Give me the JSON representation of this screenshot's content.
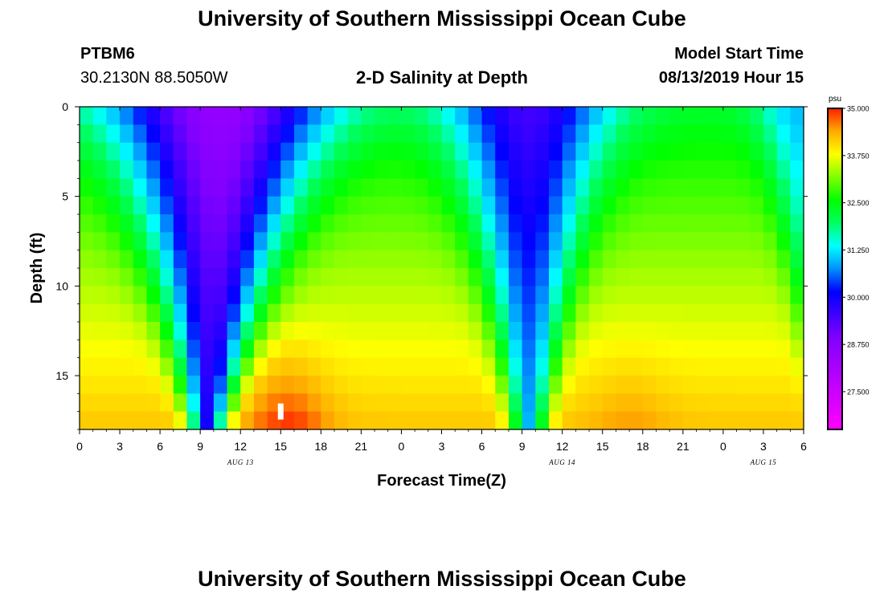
{
  "header": {
    "title": "University of Southern Mississippi Ocean Cube",
    "station": "PTBM6",
    "coordinates": "30.2130N 88.5050W",
    "plot_title": "2-D Salinity at Depth",
    "model_label": "Model Start Time",
    "model_time": "08/13/2019 Hour 15"
  },
  "footer": {
    "title": "University of Southern Mississippi Ocean Cube"
  },
  "chart_data": {
    "type": "heatmap",
    "title": "2-D Salinity at Depth",
    "xlabel": "Forecast Time(Z)",
    "ylabel": "Depth (ft)",
    "x_range_hours": [
      0,
      54
    ],
    "y_range_ft": [
      0,
      18
    ],
    "x_tick_labels": [
      "0",
      "3",
      "6",
      "9",
      "12",
      "15",
      "18",
      "21",
      "0",
      "3",
      "6",
      "9",
      "12",
      "15",
      "18",
      "21",
      "0",
      "3",
      "6"
    ],
    "y_ticks": [
      0,
      5,
      10,
      15
    ],
    "date_labels": [
      {
        "hour": 12,
        "label": "AUG 13"
      },
      {
        "hour": 36,
        "label": "AUG 14"
      },
      {
        "hour": 51,
        "label": "AUG 15"
      }
    ],
    "colorbar": {
      "unit": "psu",
      "min": 26.5,
      "max": 35.0,
      "tick_labels": [
        "35.000",
        "33.750",
        "32.500",
        "31.250",
        "30.000",
        "28.750",
        "27.500"
      ],
      "tick_values": [
        35.0,
        33.75,
        32.5,
        31.25,
        30.0,
        28.75,
        27.5
      ]
    },
    "marker": {
      "hour": 15,
      "depth_ft": 17
    },
    "salinity_model": {
      "surface_minima": [
        {
          "center_hour": 10.5,
          "sigma_hours": 8,
          "bottom_center_hour": 9.5,
          "bottom_sigma_hours": 1.2,
          "min_psu": 28.5
        },
        {
          "center_hour": 33.5,
          "sigma_hours": 6,
          "bottom_center_hour": 33.5,
          "bottom_sigma_hours": 1.2,
          "min_psu": 29.5
        },
        {
          "center_hour": 53.5,
          "sigma_hours": 3,
          "bottom_center_hour": 56,
          "bottom_sigma_hours": 1,
          "min_psu": 31.0
        }
      ],
      "bottom_maxima": [
        {
          "center_hour": 15.5,
          "sigma_hours": 3,
          "max_psu": 35.0
        },
        {
          "center_hour": 41,
          "sigma_hours": 3,
          "max_psu": 34.5
        }
      ],
      "background_surface_psu": 32.3,
      "background_bottom_psu": 34.2
    }
  }
}
